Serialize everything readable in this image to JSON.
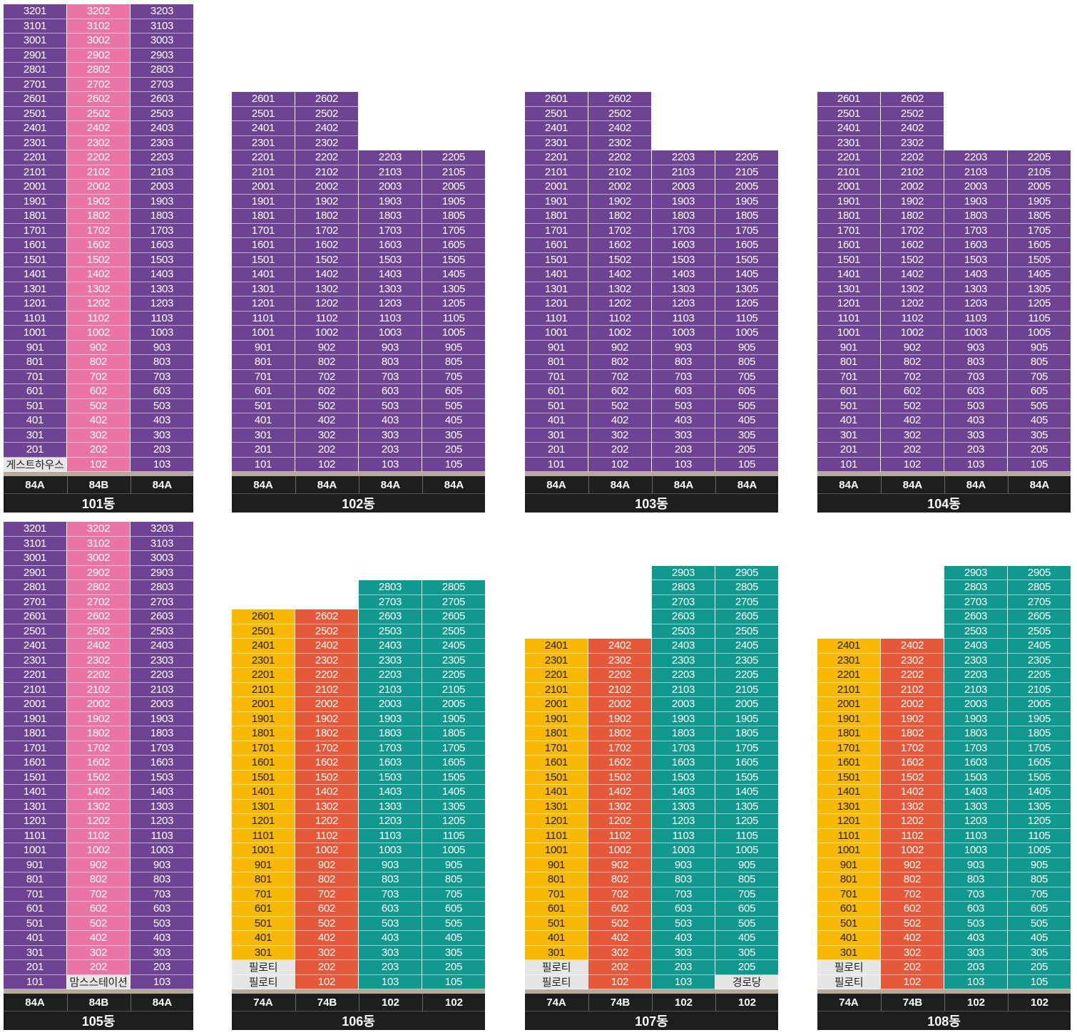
{
  "colors": {
    "purple": "#6e4394",
    "pink": "#ea75a4",
    "gray": "#e6e6e6",
    "yellow": "#f8b804",
    "orange": "#e6583a",
    "teal": "#11998f",
    "black": "#1e1e1e",
    "ground": "#b5aa9c"
  },
  "buildings": [
    {
      "name": "101동",
      "types": [
        "84A",
        "84B",
        "84A"
      ],
      "columns": [
        {
          "line": 1,
          "floors": [
            {
              "floor": 2,
              "top": 32,
              "color": "purple"
            }
          ],
          "special": [
            {
              "floor": 1,
              "label": "게스트하우스",
              "color": "gray"
            }
          ]
        },
        {
          "line": 2,
          "floors": [
            {
              "floor": 1,
              "top": 32,
              "color": "pink"
            }
          ],
          "special": []
        },
        {
          "line": 3,
          "floors": [
            {
              "floor": 1,
              "top": 32,
              "color": "purple"
            }
          ],
          "special": []
        }
      ]
    },
    {
      "name": "102동",
      "types": [
        "84A",
        "84A",
        "84A",
        "84A"
      ],
      "columns": [
        {
          "line": 1,
          "floors": [
            {
              "floor": 1,
              "top": 26,
              "color": "purple"
            }
          ],
          "special": []
        },
        {
          "line": 2,
          "floors": [
            {
              "floor": 1,
              "top": 26,
              "color": "purple"
            }
          ],
          "special": []
        },
        {
          "line": 3,
          "floors": [
            {
              "floor": 1,
              "top": 22,
              "color": "purple"
            }
          ],
          "special": []
        },
        {
          "line": 5,
          "floors": [
            {
              "floor": 1,
              "top": 22,
              "color": "purple"
            }
          ],
          "special": []
        }
      ]
    },
    {
      "name": "103동",
      "types": [
        "84A",
        "84A",
        "84A",
        "84A"
      ],
      "columns": [
        {
          "line": 1,
          "floors": [
            {
              "floor": 1,
              "top": 26,
              "color": "purple"
            }
          ],
          "special": []
        },
        {
          "line": 2,
          "floors": [
            {
              "floor": 1,
              "top": 26,
              "color": "purple"
            }
          ],
          "special": []
        },
        {
          "line": 3,
          "floors": [
            {
              "floor": 1,
              "top": 22,
              "color": "purple"
            }
          ],
          "special": []
        },
        {
          "line": 5,
          "floors": [
            {
              "floor": 1,
              "top": 22,
              "color": "purple"
            }
          ],
          "special": []
        }
      ]
    },
    {
      "name": "104동",
      "types": [
        "84A",
        "84A",
        "84A",
        "84A"
      ],
      "columns": [
        {
          "line": 1,
          "floors": [
            {
              "floor": 1,
              "top": 26,
              "color": "purple"
            }
          ],
          "special": []
        },
        {
          "line": 2,
          "floors": [
            {
              "floor": 1,
              "top": 26,
              "color": "purple"
            }
          ],
          "special": []
        },
        {
          "line": 3,
          "floors": [
            {
              "floor": 1,
              "top": 22,
              "color": "purple"
            }
          ],
          "special": []
        },
        {
          "line": 5,
          "floors": [
            {
              "floor": 1,
              "top": 22,
              "color": "purple"
            }
          ],
          "special": []
        }
      ]
    },
    {
      "name": "105동",
      "types": [
        "84A",
        "84B",
        "84A"
      ],
      "columns": [
        {
          "line": 1,
          "floors": [
            {
              "floor": 1,
              "top": 32,
              "color": "purple"
            }
          ],
          "special": []
        },
        {
          "line": 2,
          "floors": [
            {
              "floor": 2,
              "top": 32,
              "color": "pink"
            }
          ],
          "special": [
            {
              "floor": 1,
              "label": "맘스스테이션",
              "color": "gray"
            }
          ]
        },
        {
          "line": 3,
          "floors": [
            {
              "floor": 1,
              "top": 32,
              "color": "purple"
            }
          ],
          "special": []
        }
      ]
    },
    {
      "name": "106동",
      "types": [
        "74A",
        "74B",
        "102",
        "102"
      ],
      "columns": [
        {
          "line": 1,
          "floors": [
            {
              "floor": 3,
              "top": 26,
              "color": "yellow"
            }
          ],
          "special": [
            {
              "floor": 2,
              "label": "필로티",
              "color": "gray"
            },
            {
              "floor": 1,
              "label": "필로티",
              "color": "gray"
            }
          ]
        },
        {
          "line": 2,
          "floors": [
            {
              "floor": 1,
              "top": 26,
              "color": "orange"
            }
          ],
          "special": []
        },
        {
          "line": 3,
          "floors": [
            {
              "floor": 1,
              "top": 28,
              "color": "teal"
            }
          ],
          "special": []
        },
        {
          "line": 5,
          "floors": [
            {
              "floor": 1,
              "top": 28,
              "color": "teal"
            }
          ],
          "special": []
        }
      ]
    },
    {
      "name": "107동",
      "types": [
        "74A",
        "74B",
        "102",
        "102"
      ],
      "columns": [
        {
          "line": 1,
          "floors": [
            {
              "floor": 3,
              "top": 24,
              "color": "yellow"
            }
          ],
          "special": [
            {
              "floor": 2,
              "label": "필로티",
              "color": "gray"
            },
            {
              "floor": 1,
              "label": "필로티",
              "color": "gray"
            }
          ]
        },
        {
          "line": 2,
          "floors": [
            {
              "floor": 1,
              "top": 24,
              "color": "orange"
            }
          ],
          "special": []
        },
        {
          "line": 3,
          "floors": [
            {
              "floor": 1,
              "top": 29,
              "color": "teal"
            }
          ],
          "special": []
        },
        {
          "line": 5,
          "floors": [
            {
              "floor": 2,
              "top": 29,
              "color": "teal"
            }
          ],
          "special": [
            {
              "floor": 1,
              "label": "경로당",
              "color": "gray"
            }
          ]
        }
      ]
    },
    {
      "name": "108동",
      "types": [
        "74A",
        "74B",
        "102",
        "102"
      ],
      "columns": [
        {
          "line": 1,
          "floors": [
            {
              "floor": 3,
              "top": 24,
              "color": "yellow"
            }
          ],
          "special": [
            {
              "floor": 2,
              "label": "필로티",
              "color": "gray"
            },
            {
              "floor": 1,
              "label": "필로티",
              "color": "gray"
            }
          ]
        },
        {
          "line": 2,
          "floors": [
            {
              "floor": 1,
              "top": 24,
              "color": "orange"
            }
          ],
          "special": []
        },
        {
          "line": 3,
          "floors": [
            {
              "floor": 1,
              "top": 29,
              "color": "teal"
            }
          ],
          "special": []
        },
        {
          "line": 5,
          "floors": [
            {
              "floor": 1,
              "top": 29,
              "color": "teal"
            }
          ],
          "special": []
        }
      ]
    }
  ]
}
